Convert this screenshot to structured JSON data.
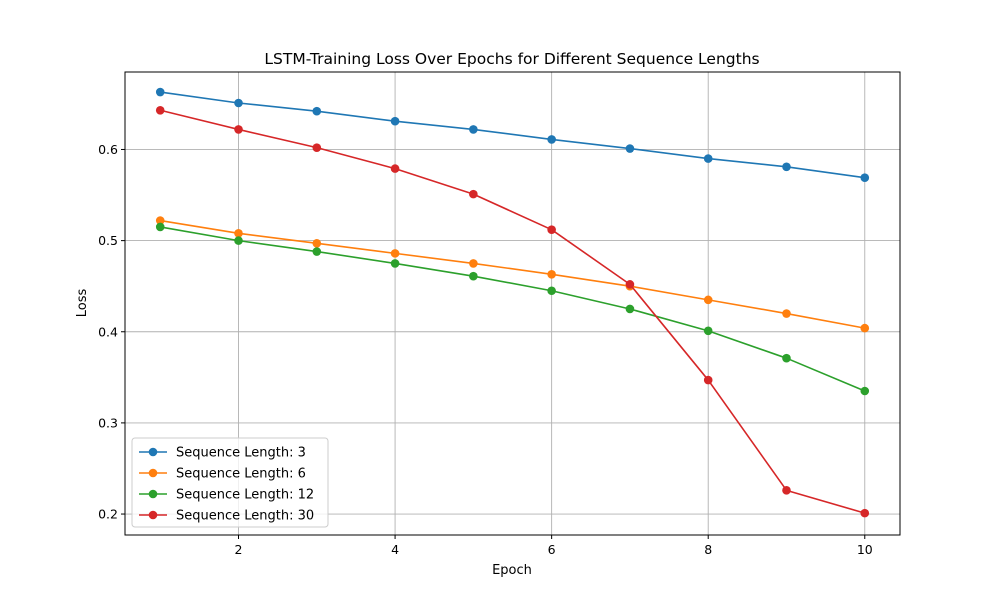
{
  "chart_data": {
    "type": "line",
    "title": "LSTM-Training Loss Over Epochs for Different Sequence Lengths",
    "xlabel": "Epoch",
    "ylabel": "Loss",
    "x": [
      1,
      2,
      3,
      4,
      5,
      6,
      7,
      8,
      9,
      10
    ],
    "xlim": [
      0.55,
      10.45
    ],
    "ylim": [
      0.177,
      0.685
    ],
    "xticks": [
      2,
      4,
      6,
      8,
      10
    ],
    "yticks": [
      0.2,
      0.3,
      0.4,
      0.5,
      0.6
    ],
    "xtick_labels": [
      "2",
      "4",
      "6",
      "8",
      "10"
    ],
    "ytick_labels": [
      "0.2",
      "0.3",
      "0.4",
      "0.5",
      "0.6"
    ],
    "grid": true,
    "legend_position": "lower-left",
    "series": [
      {
        "name": "Sequence Length: 3",
        "color": "#1f77b4",
        "values": [
          0.663,
          0.651,
          0.642,
          0.631,
          0.622,
          0.611,
          0.601,
          0.59,
          0.581,
          0.569
        ]
      },
      {
        "name": "Sequence Length: 6",
        "color": "#ff7f0e",
        "values": [
          0.522,
          0.508,
          0.497,
          0.486,
          0.475,
          0.463,
          0.45,
          0.435,
          0.42,
          0.404
        ]
      },
      {
        "name": "Sequence Length: 12",
        "color": "#2ca02c",
        "values": [
          0.515,
          0.5,
          0.488,
          0.475,
          0.461,
          0.445,
          0.425,
          0.401,
          0.371,
          0.335
        ]
      },
      {
        "name": "Sequence Length: 30",
        "color": "#d62728",
        "values": [
          0.643,
          0.622,
          0.602,
          0.579,
          0.551,
          0.512,
          0.452,
          0.347,
          0.226,
          0.201
        ]
      }
    ]
  }
}
